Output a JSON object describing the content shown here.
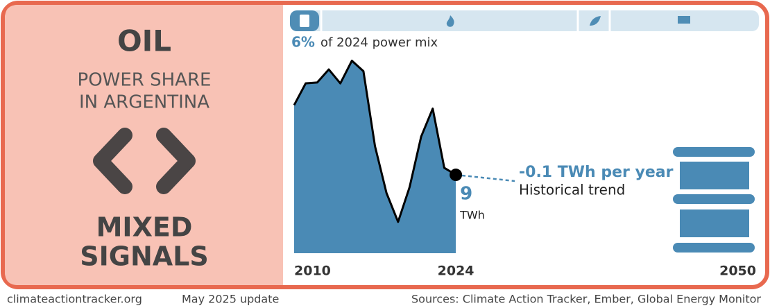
{
  "panel": {
    "title": "OIL",
    "subtitle_lines": [
      "POWER SHARE",
      "IN ARGENTINA"
    ],
    "signal_lines": [
      "MIXED",
      "SIGNALS"
    ]
  },
  "chart_data": {
    "type": "area",
    "share_label": "6%",
    "share_text": "of 2024 power mix",
    "x": [
      2010,
      2011,
      2012,
      2013,
      2014,
      2015,
      2016,
      2017,
      2018,
      2019,
      2020,
      2021,
      2022,
      2023,
      2024
    ],
    "values": [
      17.0,
      19.5,
      19.6,
      21.1,
      19.5,
      22.1,
      20.9,
      12.3,
      6.9,
      3.6,
      7.6,
      13.4,
      16.6,
      9.8,
      9
    ],
    "unit": "TWh",
    "color": "#4a8ab5",
    "trend_label": "-0.1 TWh per year",
    "trend_text": "Historical trend",
    "xlim": [
      2010,
      2050
    ],
    "xticks": [
      2010,
      2024,
      2050
    ],
    "ylim": [
      0,
      22.7
    ]
  },
  "footer": {
    "site": "climateactiontracker.org",
    "update": "May 2025 update",
    "sources": "Sources: Climate Action Tracker, Ember, Global Energy Monitor"
  }
}
